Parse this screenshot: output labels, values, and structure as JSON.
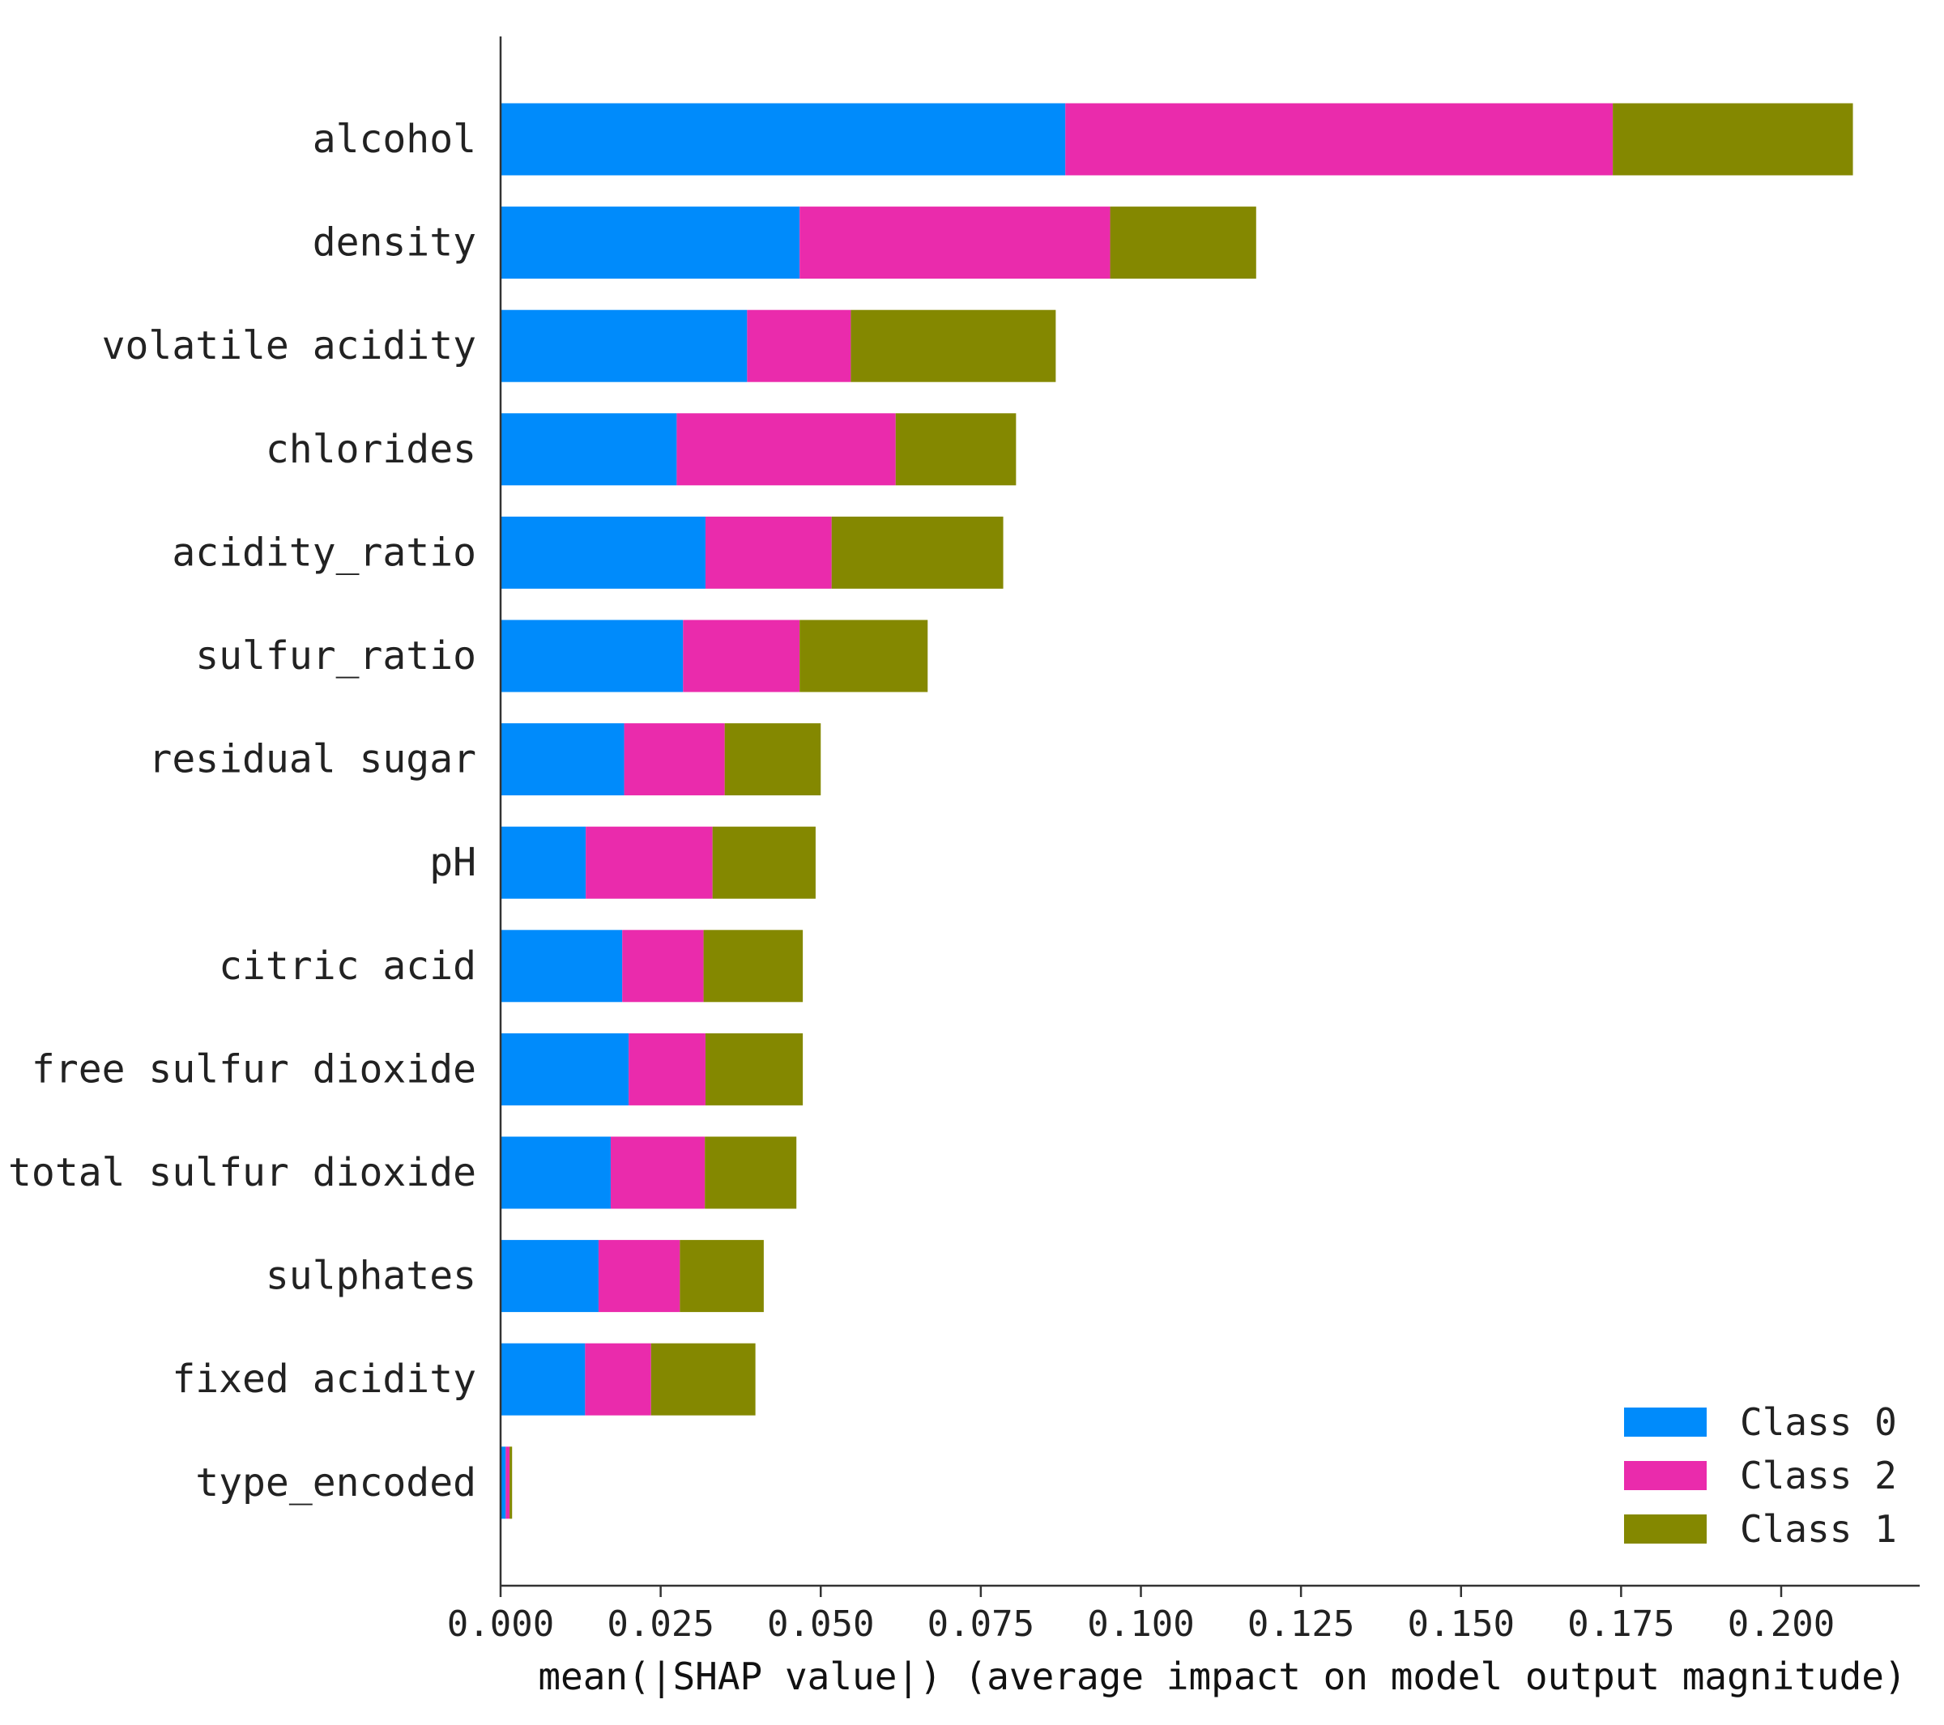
{
  "chart_data": {
    "type": "bar",
    "orientation": "horizontal",
    "stacked": true,
    "categories": [
      "alcohol",
      "density",
      "volatile acidity",
      "chlorides",
      "acidity_ratio",
      "sulfur_ratio",
      "residual sugar",
      "pH",
      "citric acid",
      "free sulfur dioxide",
      "total sulfur dioxide",
      "sulphates",
      "fixed acidity",
      "type_encoded"
    ],
    "series": [
      {
        "name": "Class 0",
        "color": "#008bfb",
        "values": [
          0.0882,
          0.0467,
          0.0385,
          0.0275,
          0.032,
          0.0285,
          0.0193,
          0.0133,
          0.019,
          0.02,
          0.0172,
          0.0153,
          0.0132,
          0.0008
        ]
      },
      {
        "name": "Class 2",
        "color": "#ea2bac",
        "values": [
          0.0855,
          0.0485,
          0.0162,
          0.0342,
          0.0197,
          0.0182,
          0.0157,
          0.0198,
          0.0127,
          0.012,
          0.0147,
          0.0127,
          0.0103,
          0.0006
        ]
      },
      {
        "name": "Class 1",
        "color": "#848800",
        "values": [
          0.0375,
          0.0228,
          0.032,
          0.0188,
          0.0268,
          0.02,
          0.015,
          0.0161,
          0.0155,
          0.0152,
          0.0143,
          0.0131,
          0.0163,
          0.0004
        ]
      }
    ],
    "xlabel": "mean(|SHAP value|) (average impact on model output magnitude)",
    "ylabel": "",
    "xlim": [
      0,
      0.222
    ],
    "xticks": [
      0.0,
      0.025,
      0.05,
      0.075,
      0.1,
      0.125,
      0.15,
      0.175,
      0.2
    ],
    "xtick_labels": [
      "0.000",
      "0.025",
      "0.050",
      "0.075",
      "0.100",
      "0.125",
      "0.150",
      "0.175",
      "0.200"
    ],
    "grid": false,
    "legend_placement": "bottom-right"
  }
}
